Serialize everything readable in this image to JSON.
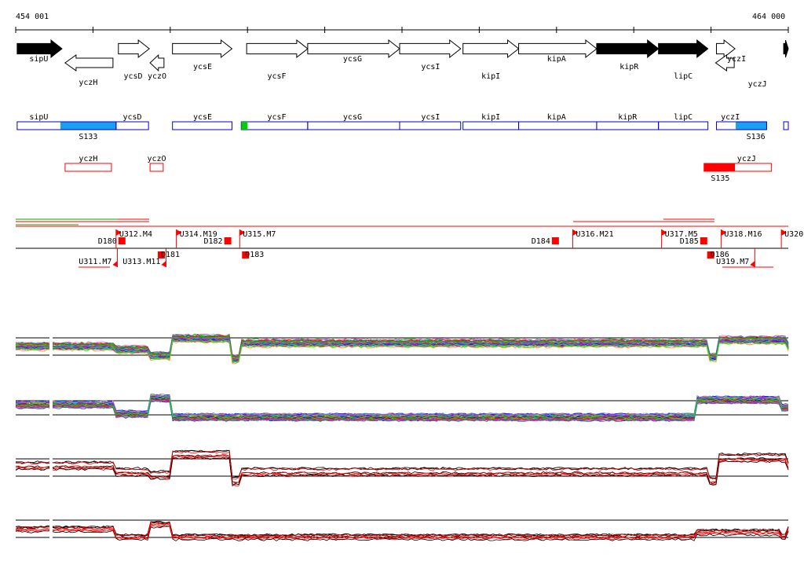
{
  "ruler": {
    "start_label": "454 001",
    "end_label": "464 000",
    "start": 454001,
    "end": 464000
  },
  "colors": {
    "gene_filled": "#000000",
    "gene_outline": "#000000",
    "operon_box": "#0000cc",
    "operon_highlight": "#1aa0f0",
    "operon_start": "#00cc00",
    "antisense": "#ff0000",
    "track_line": "#000000"
  },
  "genes_plus": [
    {
      "name": "sipU",
      "start": 454020,
      "end": 454600,
      "filled": true
    },
    {
      "name": "ycsD",
      "start": 455330,
      "end": 455730,
      "filled": false
    },
    {
      "name": "ycsE",
      "start": 456030,
      "end": 456800,
      "filled": false
    },
    {
      "name": "ycsF",
      "start": 456990,
      "end": 457780,
      "filled": false
    },
    {
      "name": "ycsG",
      "start": 457780,
      "end": 458970,
      "filled": false
    },
    {
      "name": "ycsI",
      "start": 458970,
      "end": 459760,
      "filled": false
    },
    {
      "name": "kipI",
      "start": 459790,
      "end": 460510,
      "filled": false
    },
    {
      "name": "kipA",
      "start": 460510,
      "end": 461520,
      "filled": false
    },
    {
      "name": "kipR",
      "start": 461520,
      "end": 462320,
      "filled": true
    },
    {
      "name": "lipC",
      "start": 462320,
      "end": 462960,
      "filled": false,
      "filled_override": true
    },
    {
      "name": "yczI",
      "start": 463070,
      "end": 463310,
      "filled": false
    },
    {
      "name": "",
      "start": 463940,
      "end": 464000,
      "filled": true
    }
  ],
  "genes_minus": [
    {
      "name": "yczH",
      "start": 454640,
      "end": 455260
    },
    {
      "name": "yczO",
      "start": 455740,
      "end": 455920
    },
    {
      "name": "yczJ",
      "start": 463060,
      "end": 463300
    }
  ],
  "plus_labels": [
    {
      "text": "sipU",
      "pos": 454300
    },
    {
      "text": "ycsD",
      "pos": 455520
    },
    {
      "text": "yczO",
      "pos": 455830
    },
    {
      "text": "ycsE",
      "pos": 456420
    },
    {
      "text": "ycsF",
      "pos": 457380
    },
    {
      "text": "ycsG",
      "pos": 458360
    },
    {
      "text": "ycsI",
      "pos": 459370
    },
    {
      "text": "kipI",
      "pos": 460150
    },
    {
      "text": "kipA",
      "pos": 461000
    },
    {
      "text": "kipR",
      "pos": 461940
    },
    {
      "text": "lipC",
      "pos": 462640
    },
    {
      "text": "yczI",
      "pos": 463330
    },
    {
      "text": "yczH",
      "pos": 454940
    },
    {
      "text": "yczJ",
      "pos": 463600
    }
  ],
  "operons_plus": [
    {
      "start": 454020,
      "end": 455300,
      "label": "sipU",
      "label_pos": 454300,
      "highlight": [
        454580,
        455300
      ],
      "highlight_label": "S133",
      "hl_label_pos": 454940
    },
    {
      "start": 455300,
      "end": 455720,
      "label": "ycsD",
      "label_pos": 455510
    },
    {
      "start": 456030,
      "end": 456800,
      "label": "ycsE",
      "label_pos": 456420
    },
    {
      "start": 456920,
      "end": 457780,
      "label": "ycsF",
      "label_pos": 457380,
      "start_mark": true
    },
    {
      "start": 457780,
      "end": 458970,
      "label": "ycsG",
      "label_pos": 458360
    },
    {
      "start": 458970,
      "end": 459760,
      "label": "ycsI",
      "label_pos": 459370
    },
    {
      "start": 459790,
      "end": 460510,
      "label": "kipI",
      "label_pos": 460150
    },
    {
      "start": 460510,
      "end": 461520,
      "label": "kipA",
      "label_pos": 461000
    },
    {
      "start": 461520,
      "end": 462320,
      "label": "kipR",
      "label_pos": 461920
    },
    {
      "start": 462320,
      "end": 462960,
      "label": "lipC",
      "label_pos": 462640,
      "tail": [
        462810,
        462960
      ]
    },
    {
      "start": 463070,
      "end": 463720,
      "label": "yczI",
      "label_pos": 463250,
      "highlight": [
        463320,
        463720
      ],
      "highlight_label": "S136",
      "hl_label_pos": 463580
    },
    {
      "start": 463940,
      "end": 464000,
      "label": "",
      "label_pos": 463970
    }
  ],
  "operons_minus": [
    {
      "start": 454640,
      "end": 455240,
      "label": "yczH",
      "label_pos": 454940
    },
    {
      "start": 455740,
      "end": 455910,
      "label": "yczO",
      "label_pos": 455825
    },
    {
      "start": 462910,
      "end": 463780,
      "label": "yczJ",
      "label_pos": 463460,
      "highlight": [
        462910,
        463310
      ],
      "highlight_label": "S135",
      "hl_label_pos": 463120
    }
  ],
  "segments_top": [
    {
      "text": "U312.M4",
      "pos": 455300
    },
    {
      "text": "D180",
      "pos": 455330
    },
    {
      "text": "U314.M19",
      "pos": 456080
    },
    {
      "text": "D182",
      "pos": 456700
    },
    {
      "text": "U315.M7",
      "pos": 456900
    },
    {
      "text": "D184",
      "pos": 460940
    },
    {
      "text": "U316.M21",
      "pos": 461210
    },
    {
      "text": "U317.M5",
      "pos": 462360
    },
    {
      "text": "D185",
      "pos": 462860
    },
    {
      "text": "U318.M16",
      "pos": 463130
    },
    {
      "text": "U320",
      "pos": 463910
    }
  ],
  "segments_bottom": [
    {
      "text": "U311.M7",
      "pos": 454910
    },
    {
      "text": "U313.M11",
      "pos": 455540
    },
    {
      "text": "D181",
      "pos": 455840
    },
    {
      "text": "D183",
      "pos": 456930
    },
    {
      "text": "D186",
      "pos": 462950
    },
    {
      "text": "U319.M7",
      "pos": 463160
    }
  ]
}
